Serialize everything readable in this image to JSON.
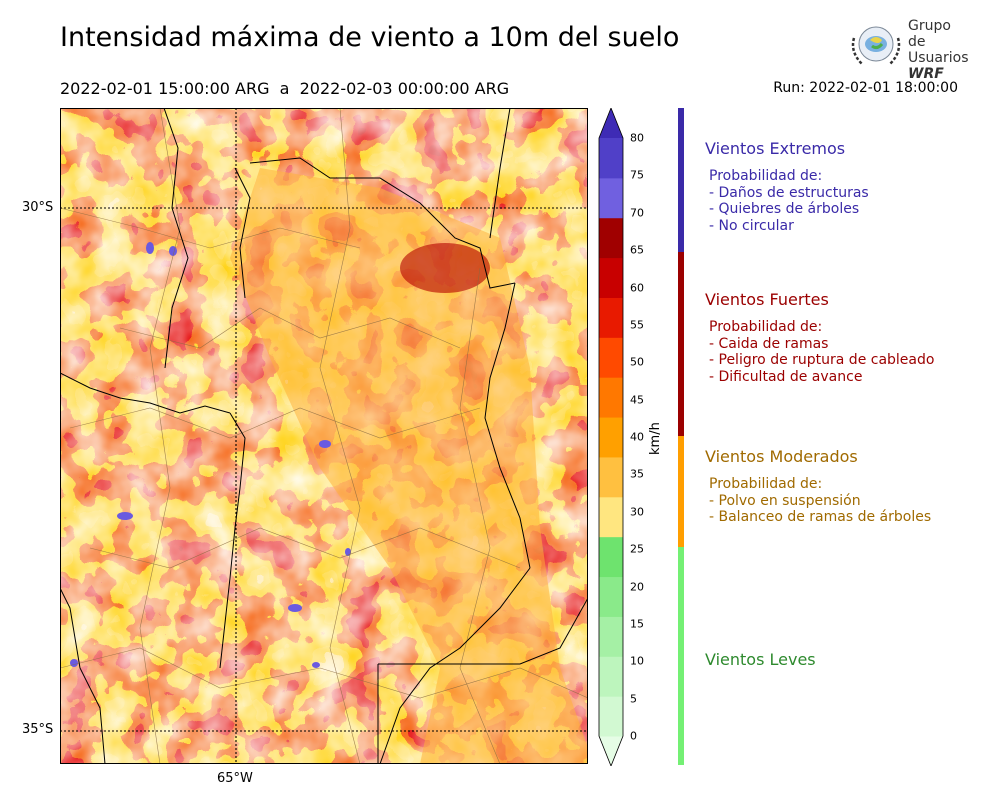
{
  "header": {
    "title": "Intensidad máxima de viento a 10m del suelo",
    "period": "2022-02-01 15:00:00 ARG  a  2022-02-03 00:00:00 ARG",
    "run": "Run: 2022-02-01 18:00:00"
  },
  "logo": {
    "line1": "Grupo de",
    "line2": "Usuarios",
    "line3": "WRF"
  },
  "map": {
    "lat_labels": [
      "30°S",
      "35°S"
    ],
    "lon_labels": [
      "65°W"
    ],
    "extent": {
      "lon_min": -66.65,
      "lon_max": -61.6,
      "lat_min": -35.3,
      "lat_max": -29.05
    },
    "gridlines": {
      "lat": [
        -30,
        -35
      ],
      "lon": [
        -65
      ]
    }
  },
  "colorbar": {
    "unit": "km/h",
    "ticks": [
      "0",
      "5",
      "10",
      "15",
      "20",
      "25",
      "30",
      "35",
      "40",
      "45",
      "50",
      "55",
      "60",
      "65",
      "70",
      "75",
      "80"
    ],
    "colors": [
      "#e6fde6",
      "#d2f9d2",
      "#bdf5bd",
      "#a5f0a5",
      "#8aea8a",
      "#6ee36e",
      "#ffe680",
      "#ffc040",
      "#ffa000",
      "#ff7800",
      "#ff4a00",
      "#e81a00",
      "#c80000",
      "#a00000",
      "#7060e0",
      "#5040c8",
      "#3e2bb5"
    ]
  },
  "categories": [
    {
      "title": "Vientos Extremos",
      "color": "#3a2aa8",
      "bar_color": "#3a2aa8",
      "lines": [
        "Probabilidad de:",
        "- Daños de estructuras",
        "- Quiebres de árboles",
        "- No circular"
      ]
    },
    {
      "title": "Vientos Fuertes",
      "color": "#9b0000",
      "bar_color": "#9b0000",
      "lines": [
        "Probabilidad de:",
        "- Caida de ramas",
        "- Peligro de ruptura de cableado",
        "- Dificultad de avance"
      ]
    },
    {
      "title": "Vientos Moderados",
      "color": "#a06a00",
      "bar_color": "#ff9e00",
      "lines": [
        "Probabilidad de:",
        "- Polvo en suspensión",
        "- Balanceo de ramas de árboles"
      ]
    },
    {
      "title": "Vientos Leves",
      "color": "#2e8a2e",
      "bar_color": "#74f074",
      "lines": []
    }
  ]
}
